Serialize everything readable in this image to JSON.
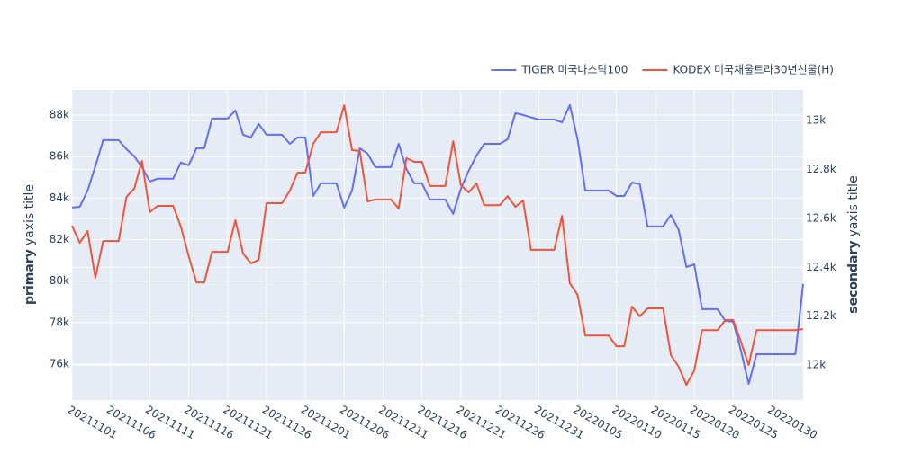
{
  "chart_data": {
    "type": "line",
    "ytitle": [
      "primary",
      "yaxis title"
    ],
    "y2title": [
      "secondary",
      "yaxis title"
    ],
    "x": [
      "20211101",
      "20211102",
      "20211103",
      "20211104",
      "20211105",
      "20211106",
      "20211107",
      "20211108",
      "20211109",
      "20211110",
      "20211111",
      "20211112",
      "20211113",
      "20211114",
      "20211115",
      "20211116",
      "20211117",
      "20211118",
      "20211119",
      "20211120",
      "20211121",
      "20211122",
      "20211123",
      "20211124",
      "20211125",
      "20211126",
      "20211127",
      "20211128",
      "20211129",
      "20211130",
      "20211201",
      "20211202",
      "20211203",
      "20211204",
      "20211205",
      "20211206",
      "20211207",
      "20211208",
      "20211209",
      "20211210",
      "20211211",
      "20211212",
      "20211213",
      "20211214",
      "20211215",
      "20211216",
      "20211217",
      "20211218",
      "20211219",
      "20211220",
      "20211221",
      "20211222",
      "20211223",
      "20211224",
      "20211225",
      "20211226",
      "20211227",
      "20211228",
      "20211229",
      "20211230",
      "20211231",
      "20220101",
      "20220102",
      "20220103",
      "20220104",
      "20220105",
      "20220106",
      "20220107",
      "20220108",
      "20220109",
      "20220110",
      "20220111",
      "20220112",
      "20220113",
      "20220114",
      "20220115",
      "20220116",
      "20220117",
      "20220118",
      "20220119",
      "20220120",
      "20220121",
      "20220122",
      "20220123",
      "20220124",
      "20220125",
      "20220126",
      "20220127",
      "20220128",
      "20220129",
      "20220130",
      "20220131",
      "20220201",
      "20220202",
      "20220203"
    ],
    "series": [
      {
        "name": "TIGER 미국나스닥100",
        "color": "#636efa",
        "axis": "y",
        "values": [
          83540,
          83580,
          84360,
          85530,
          86790,
          86790,
          86790,
          86350,
          86010,
          85490,
          84800,
          84930,
          84930,
          84930,
          85710,
          85580,
          86400,
          86400,
          87830,
          87830,
          87830,
          88220,
          87050,
          86920,
          87570,
          87050,
          87050,
          87050,
          86610,
          86920,
          86920,
          84100,
          84710,
          84710,
          84710,
          83540,
          84360,
          86400,
          86140,
          85490,
          85490,
          85490,
          86610,
          85400,
          84710,
          84710,
          83930,
          83930,
          83930,
          83240,
          84450,
          85320,
          86050,
          86610,
          86610,
          86610,
          86830,
          88090,
          88000,
          87890,
          87780,
          87780,
          87780,
          87650,
          88480,
          86830,
          84360,
          84360,
          84360,
          84360,
          84100,
          84100,
          84750,
          84670,
          82630,
          82630,
          82630,
          83190,
          82460,
          80680,
          80810,
          78650,
          78650,
          78650,
          78080,
          78040,
          76660,
          75050,
          76480,
          76480,
          76480,
          76480,
          76480,
          76480,
          79860
        ]
      },
      {
        "name": "KODEX 미국채울트라30년선물(H)",
        "color": "#ef553b",
        "axis": "y2",
        "values": [
          12570,
          12500,
          12548,
          12357,
          12507,
          12507,
          12507,
          12688,
          12721,
          12835,
          12625,
          12651,
          12651,
          12651,
          12566,
          12445,
          12338,
          12338,
          12463,
          12463,
          12463,
          12592,
          12456,
          12416,
          12430,
          12662,
          12662,
          12662,
          12713,
          12787,
          12787,
          12904,
          12952,
          12952,
          12952,
          13062,
          12879,
          12875,
          12669,
          12677,
          12677,
          12677,
          12640,
          12846,
          12831,
          12831,
          12732,
          12732,
          12732,
          12915,
          12735,
          12706,
          12743,
          12654,
          12654,
          12654,
          12691,
          12647,
          12673,
          12471,
          12471,
          12471,
          12471,
          12610,
          12335,
          12287,
          12121,
          12121,
          12121,
          12121,
          12077,
          12077,
          12239,
          12199,
          12232,
          12232,
          12232,
          12041,
          11993,
          11919,
          11978,
          12143,
          12143,
          12143,
          12184,
          12184,
          12096,
          12000,
          12143,
          12143,
          12143,
          12143,
          12143,
          12143,
          12147
        ]
      }
    ],
    "xlim": [
      "20211101",
      "20220203"
    ],
    "xticks": [
      "20211101",
      "20211106",
      "20211111",
      "20211116",
      "20211121",
      "20211126",
      "20211201",
      "20211206",
      "20211211",
      "20211216",
      "20211221",
      "20211226",
      "20211231",
      "20220105",
      "20220110",
      "20220115",
      "20220120",
      "20220125",
      "20220130"
    ],
    "ylim": [
      74270,
      89210
    ],
    "yticks": [
      {
        "value": 76000,
        "label": "76k"
      },
      {
        "value": 78000,
        "label": "78k"
      },
      {
        "value": 80000,
        "label": "80k"
      },
      {
        "value": 82000,
        "label": "82k"
      },
      {
        "value": 84000,
        "label": "84k"
      },
      {
        "value": 86000,
        "label": "86k"
      },
      {
        "value": 88000,
        "label": "88k"
      }
    ],
    "y2lim": [
      11857,
      13125
    ],
    "y2ticks": [
      {
        "value": 12000,
        "label": "12k"
      },
      {
        "value": 12200,
        "label": "12.2k"
      },
      {
        "value": 12400,
        "label": "12.4k"
      },
      {
        "value": 12600,
        "label": "12.6k"
      },
      {
        "value": 12800,
        "label": "12.8k"
      },
      {
        "value": 13000,
        "label": "13k"
      }
    ],
    "grid": true,
    "legend": "top-right"
  }
}
